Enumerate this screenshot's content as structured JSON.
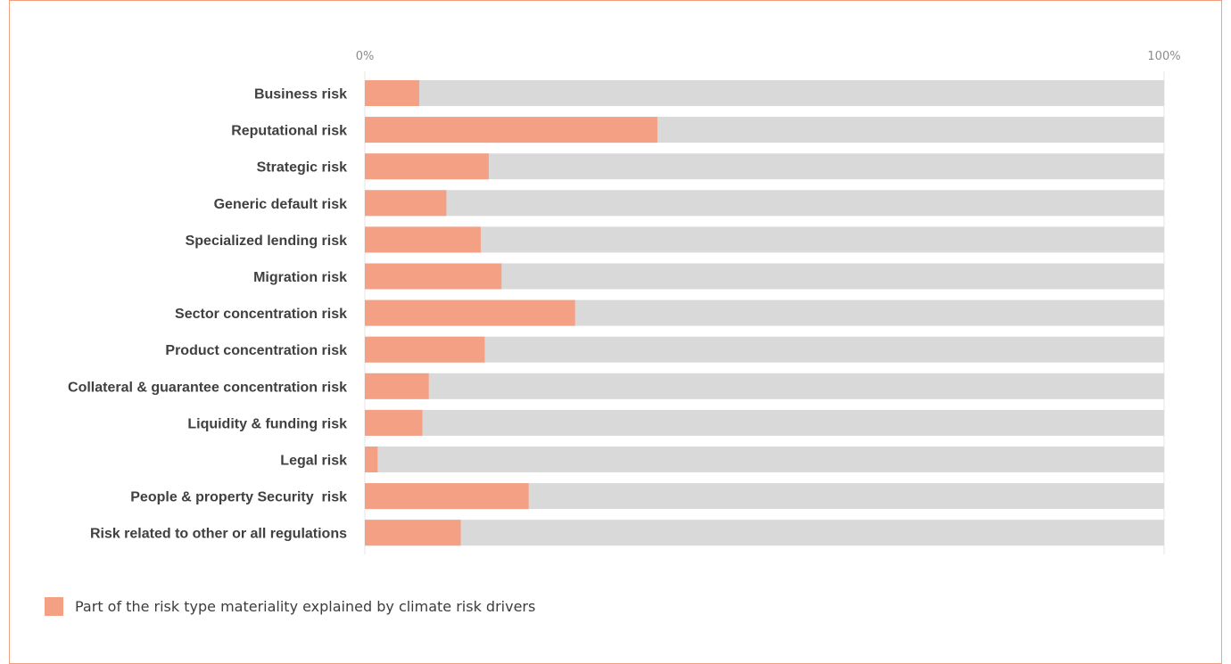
{
  "chart_data": {
    "type": "bar",
    "orientation": "horizontal",
    "stacked": true,
    "categories": [
      "Business risk",
      "Reputational risk",
      "Strategic risk",
      "Generic default risk",
      "Specialized lending risk",
      "Migration risk",
      "Sector concentration risk",
      "Product concentration risk",
      "Collateral & guarantee concentration risk",
      "Liquidity & funding risk",
      "Legal risk",
      "People & property Security  risk",
      "Risk related to other or all regulations"
    ],
    "series": [
      {
        "name": "Part of the risk type materiality explained by climate risk drivers",
        "values": [
          6.8,
          36.6,
          15.5,
          10.2,
          14.5,
          17.1,
          26.3,
          15.0,
          8.0,
          7.2,
          1.6,
          20.5,
          12.0
        ],
        "color": "#f4a085"
      }
    ],
    "track_color": "#d9d9d9",
    "xlim": [
      0,
      100
    ],
    "x_tick_labels": [
      "0%",
      "100%"
    ],
    "grid": false,
    "legend_position": "bottom-left"
  }
}
